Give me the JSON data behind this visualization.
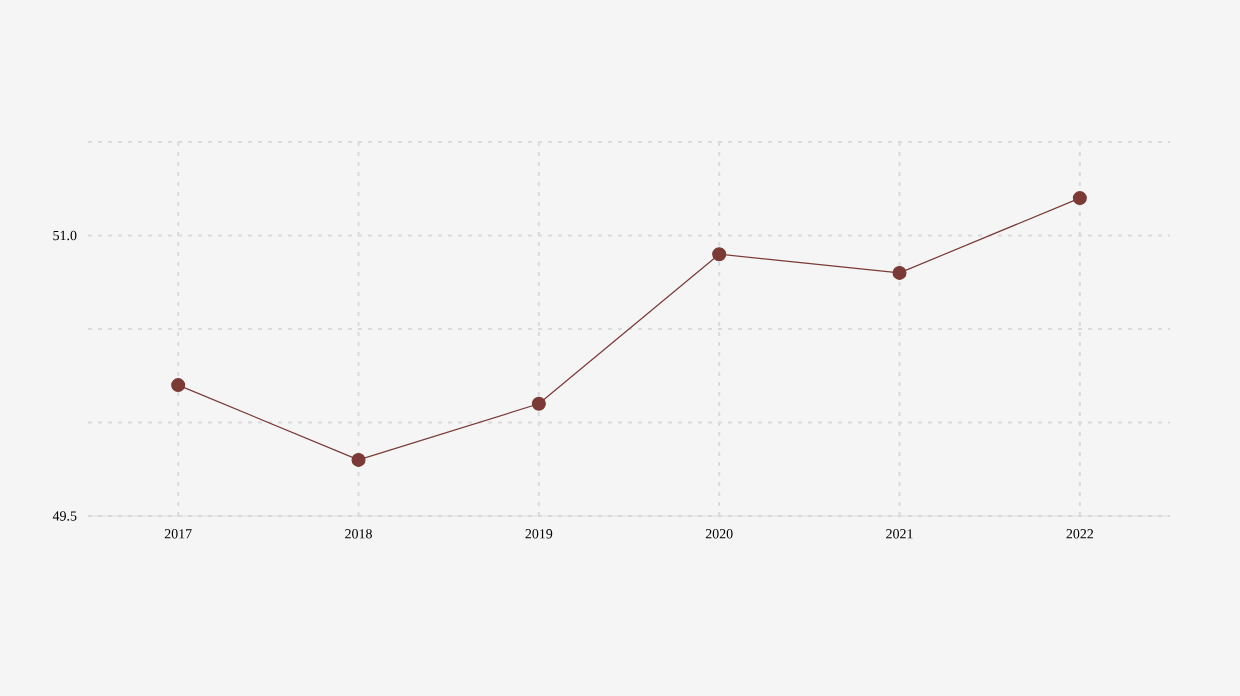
{
  "chart_data": {
    "type": "line",
    "categories": [
      "2017",
      "2018",
      "2019",
      "2020",
      "2021",
      "2022"
    ],
    "values": [
      50.2,
      49.8,
      50.1,
      50.9,
      50.8,
      51.2
    ],
    "color": "#7b3a35",
    "marker": "circle",
    "line_style": "solid",
    "ylim": [
      49.5,
      51.5
    ],
    "yticks": [
      {
        "value": 49.5,
        "label": "49.5"
      },
      {
        "value": 50.0,
        "label": null
      },
      {
        "value": 50.5,
        "label": null
      },
      {
        "value": 51.0,
        "label": "51.0"
      },
      {
        "value": 51.5,
        "label": null
      }
    ],
    "grid": true
  }
}
